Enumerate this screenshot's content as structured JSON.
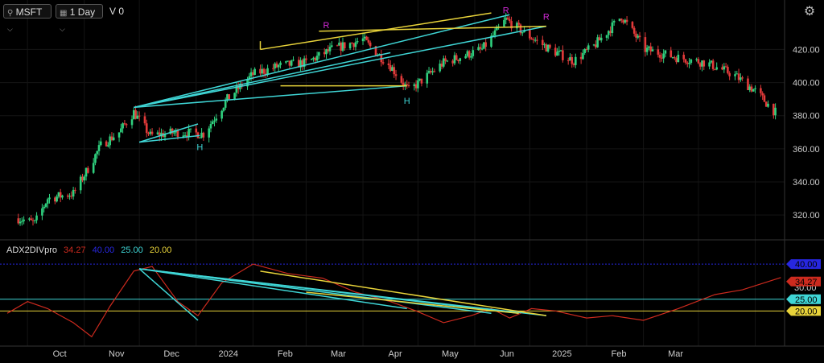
{
  "toolbar": {
    "symbol": "MSFT",
    "interval": "1 Day",
    "volume_label": "V 0",
    "settings_icon": "gear-icon",
    "search_icon": "search-icon",
    "dropdown_icon": "chevron-down-icon"
  },
  "indicator": {
    "name": "ADX2DIVpro",
    "value": "34.27",
    "level40": "40.00",
    "level25": "25.00",
    "level20": "20.00"
  },
  "colors": {
    "background": "#000000",
    "up": "#2fd07e",
    "down": "#e23a3a",
    "cyan": "#3fd6d6",
    "yellow": "#e8d33a",
    "magenta": "#d12ad6",
    "adx": "#cc2a1e",
    "blue": "#2727e0"
  },
  "chart_data": [
    {
      "type": "candlestick",
      "symbol": "MSFT",
      "interval": "1 Day",
      "ylim": [
        305,
        445
      ],
      "yticks": [
        320,
        340,
        360,
        380,
        400,
        420
      ],
      "xlabels": [
        "Oct",
        "Nov",
        "Dec",
        "2024",
        "Feb",
        "Mar",
        "Apr",
        "May",
        "Jun",
        "2025",
        "Feb",
        "Mar"
      ],
      "path": [
        [
          "2023-09-26",
          318
        ],
        [
          "2023-10-05",
          315
        ],
        [
          "2023-10-12",
          330
        ],
        [
          "2023-10-26",
          333
        ],
        [
          "2023-11-03",
          348
        ],
        [
          "2023-11-10",
          362
        ],
        [
          "2023-11-20",
          370
        ],
        [
          "2023-11-28",
          382
        ],
        [
          "2023-12-07",
          368
        ],
        [
          "2023-12-22",
          370
        ],
        [
          "2024-01-05",
          369
        ],
        [
          "2024-01-18",
          390
        ],
        [
          "2024-02-01",
          405
        ],
        [
          "2024-02-15",
          410
        ],
        [
          "2024-03-01",
          412
        ],
        [
          "2024-03-15",
          420
        ],
        [
          "2024-04-01",
          426
        ],
        [
          "2024-04-16",
          410
        ],
        [
          "2024-04-26",
          395
        ],
        [
          "2024-05-15",
          412
        ],
        [
          "2024-06-05",
          420
        ],
        [
          "2024-06-18",
          438
        ],
        [
          "2024-06-28",
          430
        ],
        [
          "2024-07-12",
          420
        ],
        [
          "2024-07-25",
          413
        ],
        [
          "2024-08-05",
          422
        ],
        [
          "2024-08-20",
          440
        ],
        [
          "2024-09-02",
          420
        ],
        [
          "2024-09-20",
          415
        ],
        [
          "2024-10-05",
          412
        ],
        [
          "2024-10-20",
          405
        ],
        [
          "2024-11-01",
          395
        ],
        [
          "2024-11-12",
          382
        ]
      ],
      "pattern_markers": [
        {
          "label": "H",
          "date": "2024-01-03",
          "price": 366
        },
        {
          "label": "R",
          "date": "2024-03-12",
          "price": 431
        },
        {
          "label": "H",
          "date": "2024-04-25",
          "price": 394
        },
        {
          "label": "R",
          "date": "2024-06-18",
          "price": 440
        },
        {
          "label": "R",
          "date": "2024-07-10",
          "price": 436
        }
      ],
      "trendlines": {
        "cyan": [
          [
            [
              "2023-11-28",
              385
            ],
            [
              "2024-06-20",
              441
            ]
          ],
          [
            [
              "2023-11-28",
              385
            ],
            [
              "2024-04-16",
              418
            ]
          ],
          [
            [
              "2023-11-28",
              385
            ],
            [
              "2024-07-10",
              434
            ]
          ],
          [
            [
              "2023-11-28",
              385
            ],
            [
              "2024-04-25",
              398
            ]
          ],
          [
            [
              "2023-12-01",
              364
            ],
            [
              "2024-01-03",
              368
            ]
          ],
          [
            [
              "2023-12-01",
              364
            ],
            [
              "2024-01-02",
              375
            ]
          ]
        ],
        "yellow": [
          [
            [
              "2024-02-05",
              420
            ],
            [
              "2024-06-10",
              442
            ]
          ],
          [
            [
              "2024-02-05",
              420
            ],
            [
              "2024-02-05",
              425
            ]
          ],
          [
            [
              "2024-03-08",
              431
            ],
            [
              "2024-07-10",
              434
            ]
          ],
          [
            [
              "2024-02-16",
              398
            ],
            [
              "2024-04-25",
              398
            ]
          ]
        ]
      }
    },
    {
      "type": "line",
      "name": "ADX2DIVpro",
      "ylim": [
        5,
        50
      ],
      "levels": [
        40,
        25,
        20
      ],
      "level_labels": [
        "40.00",
        "25.00",
        "20.00"
      ],
      "last_value": 34.27,
      "series": [
        [
          "2023-09-20",
          19
        ],
        [
          "2023-10-01",
          24
        ],
        [
          "2023-10-12",
          21
        ],
        [
          "2023-10-26",
          15
        ],
        [
          "2023-11-05",
          9
        ],
        [
          "2023-11-15",
          22
        ],
        [
          "2023-11-28",
          37
        ],
        [
          "2023-12-08",
          39
        ],
        [
          "2023-12-22",
          24
        ],
        [
          "2024-01-02",
          18
        ],
        [
          "2024-01-15",
          32
        ],
        [
          "2024-02-01",
          40
        ],
        [
          "2024-02-20",
          36
        ],
        [
          "2024-03-10",
          34
        ],
        [
          "2024-03-28",
          28
        ],
        [
          "2024-04-16",
          24
        ],
        [
          "2024-04-30",
          20
        ],
        [
          "2024-05-15",
          15
        ],
        [
          "2024-05-30",
          18
        ],
        [
          "2024-06-10",
          21
        ],
        [
          "2024-06-20",
          17
        ],
        [
          "2024-07-02",
          21
        ],
        [
          "2024-07-15",
          20
        ],
        [
          "2024-08-01",
          17
        ],
        [
          "2024-08-15",
          18
        ],
        [
          "2024-09-01",
          16
        ],
        [
          "2024-09-20",
          21
        ],
        [
          "2024-10-10",
          27
        ],
        [
          "2024-10-25",
          29
        ],
        [
          "2024-11-15",
          34.27
        ]
      ],
      "divergence_lines": {
        "cyan": [
          [
            [
              "2023-12-01",
              38
            ],
            [
              "2024-06-10",
              19
            ]
          ],
          [
            [
              "2023-12-01",
              38
            ],
            [
              "2024-07-10",
              18
            ]
          ],
          [
            [
              "2023-12-01",
              38
            ],
            [
              "2024-06-25",
              19
            ]
          ],
          [
            [
              "2023-12-01",
              38
            ],
            [
              "2024-01-02",
              16
            ]
          ],
          [
            [
              "2023-12-01",
              38
            ],
            [
              "2024-04-25",
              21
            ]
          ]
        ],
        "yellow": [
          [
            [
              "2024-02-05",
              37
            ],
            [
              "2024-07-10",
              18
            ]
          ],
          [
            [
              "2024-03-01",
              28
            ],
            [
              "2024-06-25",
              19
            ]
          ]
        ]
      }
    }
  ]
}
